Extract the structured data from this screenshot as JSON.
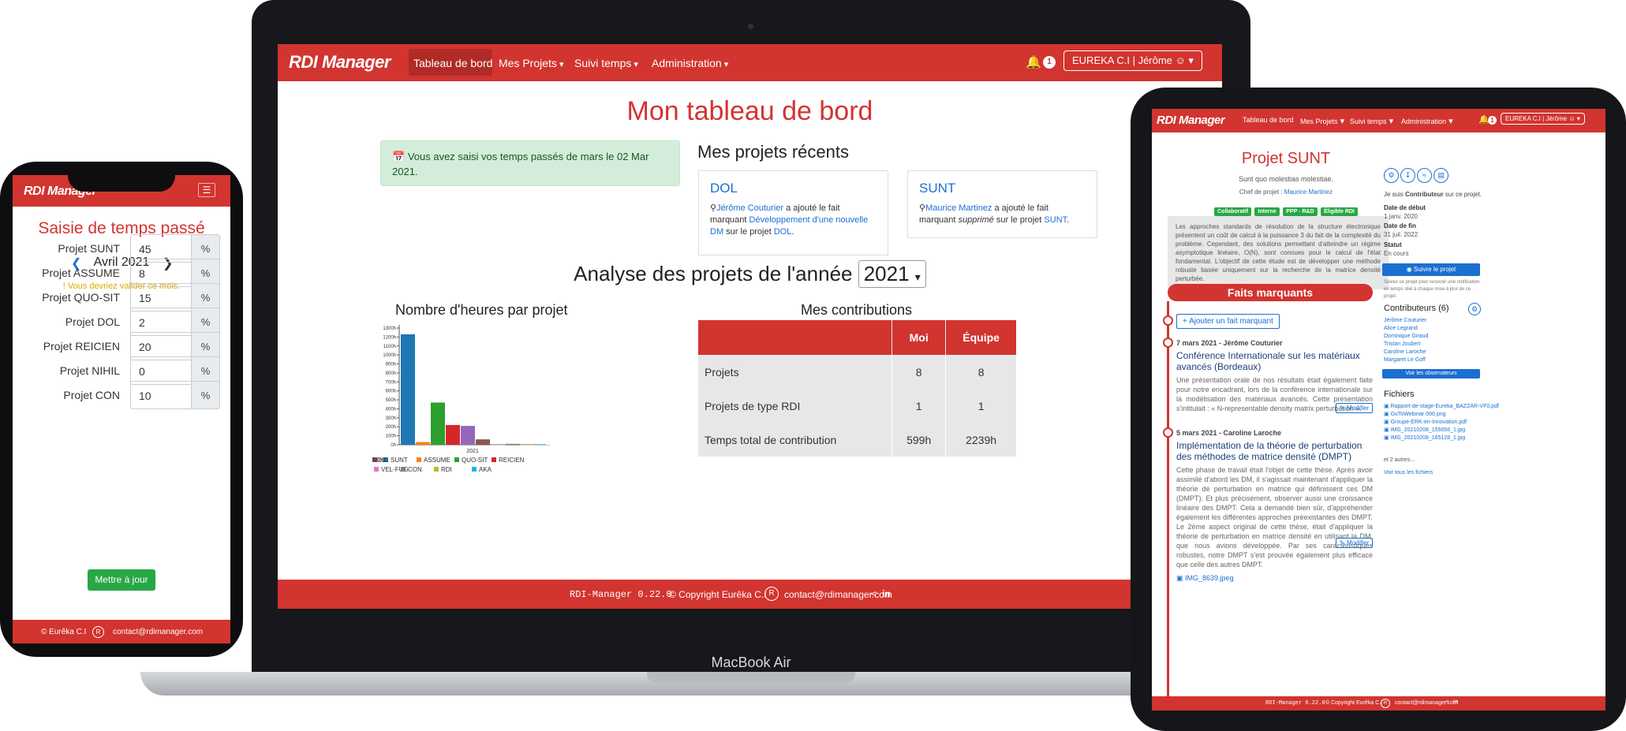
{
  "laptop": {
    "model": "MacBook Air",
    "brand": "RDI Manager",
    "nav": {
      "items": [
        "Tableau de bord",
        "Mes Projets",
        "Suivi temps",
        "Administration"
      ],
      "notif_count": "1",
      "user": "EUREKA C.I | Jérôme"
    },
    "title": "Mon tableau de bord",
    "alert": "Vous avez saisi vos temps passés de mars le 02 Mar 2021.",
    "recent": {
      "heading": "Mes projets récents",
      "cards": [
        {
          "title": "DOL",
          "person": "Jérôme Couturier",
          "text1": " a ajouté le fait marquant ",
          "link": "Développement d'une nouvelle DM",
          "text2": " sur le projet ",
          "proj": "DOL",
          "end": "."
        },
        {
          "title": "SUNT",
          "person": "Maurice Martinez",
          "text1": " a ajouté le fait marquant ",
          "italic": "supprimé",
          "text2": " sur le projet ",
          "proj": "SUNT",
          "end": "."
        }
      ]
    },
    "analysis": {
      "label": "Analyse des projets de l'année",
      "year": "2021"
    },
    "chart_title": "Nombre d'heures par projet",
    "contrib": {
      "title": "Mes contributions",
      "headers": [
        "",
        "Moi",
        "Équipe"
      ],
      "rows": [
        {
          "label": "Projets",
          "moi": "8",
          "equipe": "8"
        },
        {
          "label": "Projets de type RDI",
          "moi": "1",
          "equipe": "1"
        },
        {
          "label": "Temps total de contribution",
          "moi": "599h",
          "equipe": "2239h"
        }
      ]
    },
    "footer": {
      "version": "RDI-Manager 0.22.0",
      "copy": "© Copyright Eurêka C.I",
      "email": "contact@rdimanager.com"
    }
  },
  "chart_data": {
    "type": "bar",
    "categories": [
      "2021"
    ],
    "series": [
      {
        "name": "SUNT",
        "values": [
          1230
        ],
        "color": "#1f77b4"
      },
      {
        "name": "ASSUME",
        "values": [
          30
        ],
        "color": "#ff7f0e"
      },
      {
        "name": "QUO-SIT",
        "values": [
          470
        ],
        "color": "#2ca02c"
      },
      {
        "name": "REICIEN",
        "values": [
          220
        ],
        "color": "#d62728"
      },
      {
        "name": "DOL",
        "values": [
          210
        ],
        "color": "#9467bd"
      },
      {
        "name": "NIHIL",
        "values": [
          60
        ],
        "color": "#8c564b"
      },
      {
        "name": "VEL-FUG",
        "values": [
          0
        ],
        "color": "#e377c2"
      },
      {
        "name": "CON",
        "values": [
          10
        ],
        "color": "#7f7f7f"
      },
      {
        "name": "RDI",
        "values": [
          0
        ],
        "color": "#bcbd22"
      },
      {
        "name": "AKA",
        "values": [
          0
        ],
        "color": "#17becf"
      }
    ],
    "yticks": [
      "0h",
      "100h",
      "200h",
      "300h",
      "400h",
      "500h",
      "600h",
      "700h",
      "800h",
      "900h",
      "1000h",
      "1100h",
      "1200h",
      "1300h"
    ],
    "ylim": [
      0,
      1300
    ],
    "xlabel": "2021",
    "legend": "bottom"
  },
  "phone": {
    "brand": "RDI Manager",
    "title": "Saisie de temps passé",
    "month": "Avril 2021",
    "warning": "Vous devriez valider ce mois.",
    "rows": [
      {
        "label": "Projet SUNT",
        "value": "45",
        "unit": "%"
      },
      {
        "label": "Projet ASSUME",
        "value": "8",
        "unit": "%"
      },
      {
        "label": "Projet QUO-SIT",
        "value": "15",
        "unit": "%"
      },
      {
        "label": "Projet DOL",
        "value": "2",
        "unit": "%"
      },
      {
        "label": "Projet REICIEN",
        "value": "20",
        "unit": "%"
      },
      {
        "label": "Projet NIHIL",
        "value": "0",
        "unit": "%"
      },
      {
        "label": "Projet CON",
        "value": "10",
        "unit": "%"
      }
    ],
    "button": "Mettre à jour",
    "footer": {
      "copy": "© Eurêka C.I",
      "email": "contact@rdimanager.com"
    }
  },
  "tablet": {
    "brand": "RDI Manager",
    "nav": {
      "items": [
        "Tableau de bord",
        "Mes Projets",
        "Suivi temps",
        "Administration"
      ],
      "notif_count": "1",
      "user": "EUREKA C.I | Jérôme"
    },
    "project_title": "Projet SUNT",
    "subtitle": "Sunt quo molestias molestiae.",
    "chef_label": "Chef de projet : ",
    "chef": "Maurice Martinez",
    "badges": [
      "Collaboratif",
      "Interne",
      "PPP - R&D",
      "Éligible RDI"
    ],
    "description": "Les approches standards de résolution de la structure électronique présentent un coût de calcul à la puissance 3 du fait de la complexité du problème. Cependant, des solutions permettant d'atteindre un régime asymptotique linéaire, O(N), sont connues pour le calcul de l'état fondamental. L'objectif de cette étude est de développer une méthode robuste basée uniquement sur la recherche de la matrice densité perturbée.",
    "faits_title": "Faits marquants",
    "add_fait": "Ajouter un fait marquant",
    "faits": [
      {
        "date": "7 mars 2021 - Jérôme Couturier",
        "title": "Conférence Internationale sur les matériaux avancés (Bordeaux)",
        "text": "Une présentation orale de nos résultats était également faite pour notre encadrant, lors de la conférence internationale sur la modélisation des matériaux avancés. Cette présentation s'intitulait : « N-representable density matrix perturbation ».",
        "btn": "Modifier"
      },
      {
        "date": "5 mars 2021 - Caroline Laroche",
        "title": "Implémentation de la théorie de perturbation des méthodes de matrice densité (DMPT)",
        "text": "Cette phase de travail était l'objet de cette thèse. Après avoir assimilé d'abord les DM, il s'agissait maintenant d'appliquer la théorie de perturbation en matrice qui définissent ces DM (DMPT). Et plus précisément, observer aussi une croissance linéaire des DMPT. Cela a demandé bien sûr, d'appréhender également les différentes approches préexistantes des DMPT. Le 2ème aspect original de cette thèse, était d'appliquer la théorie de perturbation en matrice densité en utilisant la DM, que nous avions développée. Par ses caractéristiques robustes, notre DMPT s'est prouvée également plus efficace que celle des autres DMPT.",
        "file": "IMG_8639.jpeg",
        "btn": "Modifier"
      }
    ],
    "role_prefix": "Je suis ",
    "role": "Contributeur",
    "role_suffix": " sur ce projet.",
    "date_debut_label": "Date de début",
    "date_debut": "1 janv. 2020",
    "date_fin_label": "Date de fin",
    "date_fin": "31 juil. 2022",
    "statut_label": "Statut",
    "statut": "En cours",
    "follow_btn": "Suivre le projet",
    "follow_note": "Suivez ce projet pour recevoir une notification en temps réel à chaque mise à jour de ce projet.",
    "contributors_title": "Contributeurs (6)",
    "contributors": [
      "Jérôme Couturier",
      "Alice Legrand",
      "Dominique Giraud",
      "Tristan Joubert",
      "Caroline Laroche",
      "Margaret Le Goff"
    ],
    "observers_btn": "Voir les observateurs",
    "files_title": "Fichiers",
    "files": [
      "Rapport-de-stage-Eureka_BAZZAR-VF0.pdf",
      "GoToWebinar 000.png",
      "Groupe-ERK-en-Innovation.pdf",
      "IMG_20210208_155656_1.jpg",
      "IMG_20210208_165128_1.jpg"
    ],
    "files_more": "et 2 autres...",
    "files_all": "Voir tous les fichiers",
    "footer": {
      "version": "RDI-Manager 0.22.0",
      "copy": "© Copyright Eurêka C.I",
      "email": "contact@rdimanager.com"
    }
  },
  "colors": {
    "brand_red": "#d23430",
    "success_green": "#28a745",
    "link_blue": "#1a6fd1"
  }
}
